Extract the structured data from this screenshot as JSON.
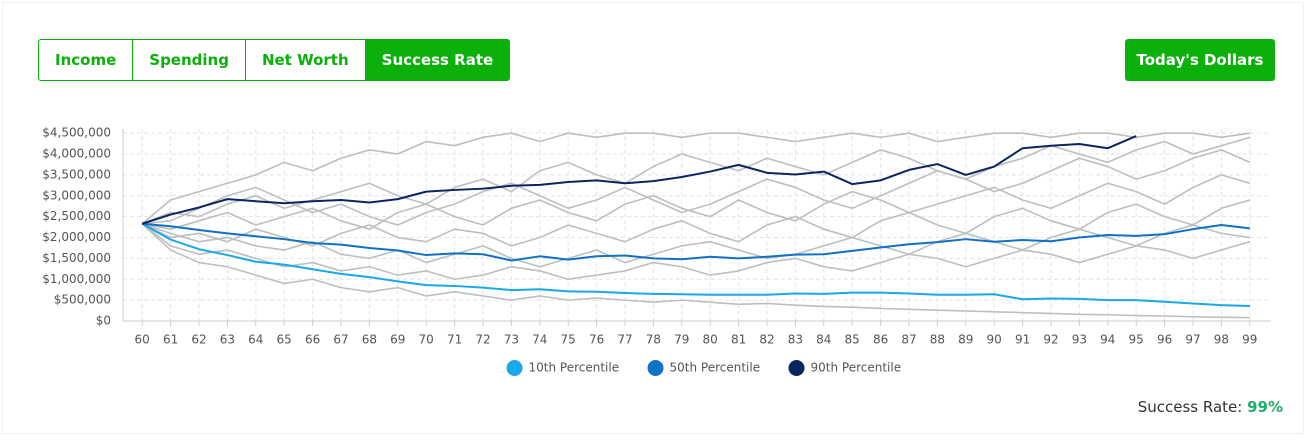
{
  "tabs": [
    "Income",
    "Spending",
    "Net Worth",
    "Success Rate"
  ],
  "active_tab": 3,
  "button": "Today's Dollars",
  "success_rate": {
    "label": "Success Rate:",
    "value": "99%"
  },
  "chart_data": {
    "type": "line",
    "categories": [
      "60",
      "61",
      "62",
      "63",
      "64",
      "65",
      "66",
      "67",
      "68",
      "69",
      "70",
      "71",
      "72",
      "73",
      "74",
      "75",
      "76",
      "77",
      "78",
      "79",
      "80",
      "81",
      "82",
      "83",
      "84",
      "85",
      "86",
      "87",
      "88",
      "89",
      "90",
      "91",
      "92",
      "93",
      "94",
      "95",
      "96",
      "97",
      "98",
      "99"
    ],
    "ylim": [
      0,
      4600000
    ],
    "yticks": [
      {
        "value": 0,
        "label": "$0"
      },
      {
        "value": 500000,
        "label": "$500,000"
      },
      {
        "value": 1000000,
        "label": "$1,000,000"
      },
      {
        "value": 1500000,
        "label": "$1,500,000"
      },
      {
        "value": 2000000,
        "label": "$2,000,000"
      },
      {
        "value": 2500000,
        "label": "$2,500,000"
      },
      {
        "value": 3000000,
        "label": "$3,000,000"
      },
      {
        "value": 3500000,
        "label": "$3,500,000"
      },
      {
        "value": 4000000,
        "label": "$4,000,000"
      },
      {
        "value": 4500000,
        "label": "$4,500,000"
      }
    ],
    "grid": true,
    "series": [
      {
        "color": "#bcbfc2",
        "values": [
          2330000.0,
          2900000.0,
          3100000.0,
          3300000.0,
          3500000.0,
          3800000.0,
          3600000.0,
          3900000.0,
          4100000.0,
          4000000.0,
          4300000.0,
          4200000.0,
          4400000.0,
          4500000.0,
          4300000.0,
          4500000.0,
          4400000.0,
          4500000.0,
          4500000.0,
          4400000.0,
          4500000.0,
          4500000.0,
          4400000.0,
          4300000.0,
          4400000.0,
          4500000.0,
          4400000.0,
          4500000.0,
          4300000.0,
          4400000.0,
          4500000.0,
          4500000.0,
          4400000.0,
          4500000.0,
          4500000.0,
          4400000.0,
          4500000.0,
          4500000.0,
          4400000.0,
          4500000.0
        ]
      },
      {
        "color": "#bcbfc2",
        "values": [
          2330000.0,
          2600000.0,
          2500000.0,
          2800000.0,
          3000000.0,
          2700000.0,
          2900000.0,
          3100000.0,
          3300000.0,
          3000000.0,
          2800000.0,
          3200000.0,
          3400000.0,
          3100000.0,
          3600000.0,
          3800000.0,
          3500000.0,
          3300000.0,
          3700000.0,
          4000000.0,
          3800000.0,
          3600000.0,
          3900000.0,
          3700000.0,
          3500000.0,
          3800000.0,
          4100000.0,
          3900000.0,
          3600000.0,
          3400000.0,
          3700000.0,
          3900000.0,
          4200000.0,
          4000000.0,
          3800000.0,
          4100000.0,
          4300000.0,
          4000000.0,
          4200000.0,
          4400000.0
        ]
      },
      {
        "color": "#bcbfc2",
        "values": [
          2330000.0,
          2200000.0,
          2400000.0,
          2600000.0,
          2300000.0,
          2500000.0,
          2700000.0,
          2400000.0,
          2200000.0,
          2600000.0,
          2800000.0,
          2500000.0,
          2300000.0,
          2700000.0,
          2900000.0,
          2600000.0,
          2400000.0,
          2800000.0,
          3000000.0,
          2700000.0,
          2500000.0,
          2900000.0,
          2600000.0,
          2400000.0,
          2800000.0,
          3100000.0,
          2900000.0,
          2600000.0,
          2800000.0,
          3000000.0,
          3200000.0,
          2900000.0,
          2700000.0,
          3000000.0,
          3300000.0,
          3100000.0,
          2800000.0,
          3200000.0,
          3500000.0,
          3300000.0
        ]
      },
      {
        "color": "#bcbfc2",
        "values": [
          2330000.0,
          2000000.0,
          2100000.0,
          1900000.0,
          2200000.0,
          2000000.0,
          1800000.0,
          2100000.0,
          2300000.0,
          2000000.0,
          1900000.0,
          2200000.0,
          2100000.0,
          1800000.0,
          2000000.0,
          2300000.0,
          2100000.0,
          1900000.0,
          2200000.0,
          2400000.0,
          2100000.0,
          1900000.0,
          2300000.0,
          2500000.0,
          2200000.0,
          2000000.0,
          2400000.0,
          2600000.0,
          2300000.0,
          2100000.0,
          2500000.0,
          2700000.0,
          2400000.0,
          2200000.0,
          2600000.0,
          2800000.0,
          2500000.0,
          2300000.0,
          2700000.0,
          2900000.0
        ]
      },
      {
        "color": "#bcbfc2",
        "values": [
          2330000.0,
          1800000.0,
          1600000.0,
          1700000.0,
          1500000.0,
          1300000.0,
          1400000.0,
          1200000.0,
          1300000.0,
          1100000.0,
          1200000.0,
          1000000.0,
          1100000.0,
          1300000.0,
          1200000.0,
          1000000.0,
          1100000.0,
          1200000.0,
          1400000.0,
          1300000.0,
          1100000.0,
          1200000.0,
          1400000.0,
          1500000.0,
          1300000.0,
          1200000.0,
          1400000.0,
          1600000.0,
          1500000.0,
          1300000.0,
          1500000.0,
          1700000.0,
          1600000.0,
          1400000.0,
          1600000.0,
          1800000.0,
          1700000.0,
          1500000.0,
          1700000.0,
          1900000.0
        ]
      },
      {
        "color": "#bcbfc2",
        "values": [
          2330000.0,
          1700000.0,
          1400000.0,
          1300000.0,
          1100000.0,
          900000.0,
          1000000.0,
          800000.0,
          700000.0,
          800000.0,
          600000.0,
          700000.0,
          600000.0,
          500000.0,
          600000.0,
          500000.0,
          550000.0,
          500000.0,
          450000.0,
          500000.0,
          450000.0,
          400000.0,
          420000.0,
          380000.0,
          350000.0,
          330000.0,
          300000.0,
          280000.0,
          260000.0,
          240000.0,
          220000.0,
          200000.0,
          180000.0,
          160000.0,
          150000.0,
          130000.0,
          120000.0,
          100000.0,
          90000.0,
          80000.0
        ]
      },
      {
        "color": "#bcbfc2",
        "values": [
          2330000.0,
          2400000.0,
          2700000.0,
          3000000.0,
          3200000.0,
          2900000.0,
          2600000.0,
          2800000.0,
          2500000.0,
          2300000.0,
          2600000.0,
          2800000.0,
          3100000.0,
          3300000.0,
          3000000.0,
          2700000.0,
          2900000.0,
          3200000.0,
          2900000.0,
          2600000.0,
          2800000.0,
          3100000.0,
          3400000.0,
          3200000.0,
          2900000.0,
          2700000.0,
          3000000.0,
          3300000.0,
          3600000.0,
          3400000.0,
          3100000.0,
          3300000.0,
          3600000.0,
          3900000.0,
          3700000.0,
          3400000.0,
          3600000.0,
          3900000.0,
          4100000.0,
          3800000.0
        ]
      },
      {
        "color": "#bcbfc2",
        "values": [
          2330000.0,
          2100000.0,
          1900000.0,
          2000000.0,
          1800000.0,
          1700000.0,
          1900000.0,
          1600000.0,
          1500000.0,
          1700000.0,
          1400000.0,
          1600000.0,
          1800000.0,
          1500000.0,
          1300000.0,
          1500000.0,
          1700000.0,
          1400000.0,
          1600000.0,
          1800000.0,
          1900000.0,
          1700000.0,
          1500000.0,
          1600000.0,
          1800000.0,
          2000000.0,
          1800000.0,
          1600000.0,
          1900000.0,
          2100000.0,
          1900000.0,
          1700000.0,
          2000000.0,
          2200000.0,
          2000000.0,
          1800000.0,
          2100000.0,
          2300000.0,
          2100000.0,
          2000000.0
        ]
      },
      {
        "name": "10th Percentile",
        "color": "#1aa9e8",
        "values": [
          2330000.0,
          1950000.0,
          1720000.0,
          1580000.0,
          1420000.0,
          1350000.0,
          1240000.0,
          1130000.0,
          1050000.0,
          950000.0,
          860000.0,
          840000.0,
          800000.0,
          740000.0,
          760000.0,
          710000.0,
          700000.0,
          670000.0,
          650000.0,
          640000.0,
          630000.0,
          630000.0,
          630000.0,
          660000.0,
          650000.0,
          680000.0,
          680000.0,
          660000.0,
          630000.0,
          630000.0,
          640000.0,
          520000.0,
          540000.0,
          530000.0,
          500000.0,
          500000.0,
          460000.0,
          420000.0,
          380000.0,
          360000.0
        ]
      },
      {
        "name": "50th Percentile",
        "color": "#1271c4",
        "values": [
          2330000.0,
          2270000.0,
          2180000.0,
          2100000.0,
          2030000.0,
          1960000.0,
          1870000.0,
          1830000.0,
          1750000.0,
          1690000.0,
          1580000.0,
          1620000.0,
          1600000.0,
          1450000.0,
          1550000.0,
          1470000.0,
          1550000.0,
          1570000.0,
          1500000.0,
          1480000.0,
          1540000.0,
          1500000.0,
          1540000.0,
          1590000.0,
          1600000.0,
          1680000.0,
          1760000.0,
          1840000.0,
          1890000.0,
          1960000.0,
          1900000.0,
          1940000.0,
          1910000.0,
          2000000.0,
          2060000.0,
          2040000.0,
          2080000.0,
          2200000.0,
          2300000.0,
          2220000.0
        ]
      },
      {
        "name": "90th Percentile",
        "color": "#0c2461",
        "values": [
          2330000.0,
          2550000.0,
          2720000.0,
          2920000.0,
          2870000.0,
          2820000.0,
          2870000.0,
          2900000.0,
          2840000.0,
          2920000.0,
          3100000.0,
          3140000.0,
          3170000.0,
          3240000.0,
          3260000.0,
          3330000.0,
          3370000.0,
          3300000.0,
          3350000.0,
          3450000.0,
          3580000.0,
          3740000.0,
          3550000.0,
          3510000.0,
          3580000.0,
          3280000.0,
          3370000.0,
          3620000.0,
          3760000.0,
          3500000.0,
          3700000.0,
          4140000.0,
          4200000.0,
          4240000.0,
          4140000.0,
          4430000.0,
          null,
          null,
          null,
          null
        ]
      }
    ]
  }
}
